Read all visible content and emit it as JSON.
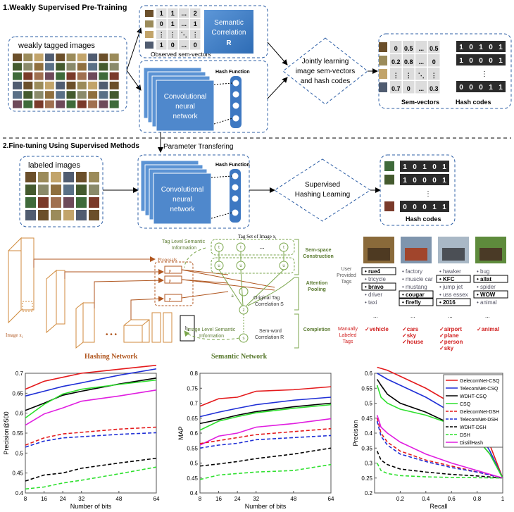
{
  "s1": {
    "title": "1.Weakly Supervised Pre-Training",
    "weak": "weakly tagged images",
    "obs": {
      "rows": [
        [
          "1",
          "1",
          "...",
          "2"
        ],
        [
          "0",
          "1",
          "...",
          "1"
        ],
        [
          "⋮",
          "⋮",
          "⋱",
          "⋮"
        ],
        [
          "1",
          "0",
          "...",
          "0"
        ]
      ],
      "label": "Observed sem-vectors"
    },
    "semcorr": {
      "l1": "Semantic",
      "l2": "Correlation",
      "l3": "R"
    },
    "cnn": {
      "l1": "Convolutional",
      "l2": "neural",
      "l3": "network"
    },
    "hashfn": "Hash Function",
    "joint": {
      "l1": "Jointly learning",
      "l2": "image sem-vectors",
      "l3": "and hash codes"
    },
    "semvec": {
      "rows": [
        [
          "0",
          "0.5",
          "...",
          "0.5"
        ],
        [
          "0.2",
          "0.8",
          "...",
          "0"
        ],
        [
          "⋮",
          "⋮",
          "⋱",
          "⋮"
        ],
        [
          "0.7",
          "0",
          "...",
          "0.3"
        ]
      ],
      "label": "Sem-vectors"
    },
    "hash": {
      "rows": [
        [
          "1",
          "0",
          "1",
          "0",
          "1"
        ],
        [
          "1",
          "0",
          "0",
          "0",
          "1"
        ],
        [
          "⋮"
        ],
        [
          "0",
          "0",
          "0",
          "1",
          "1"
        ]
      ],
      "label": "Hash codes"
    }
  },
  "s2": {
    "title": "2.Fine-tuning Using Supervised Methods",
    "param": "Parameter Transfering",
    "labeled": "labeled images",
    "cnn": {
      "l1": "Convolutional",
      "l2": "neural",
      "l3": "network"
    },
    "hashfn": "Hash Function",
    "sup": {
      "l1": "Supervised",
      "l2": "Hashing Learning"
    },
    "hash": {
      "rows": [
        [
          "1",
          "0",
          "1",
          "0",
          "1"
        ],
        [
          "1",
          "0",
          "0",
          "0",
          "1"
        ],
        [
          "⋮"
        ],
        [
          "0",
          "0",
          "0",
          "1",
          "1"
        ]
      ],
      "label": "Hash codes"
    }
  },
  "mid": {
    "image": "Image x",
    "image_sub": "i",
    "proposals": "Proposals",
    "p1": "p",
    "p2": "p",
    "pN": "p",
    "h": "h",
    "h_sub": "i",
    "hashnet": "Hashing Network",
    "dots": "• • •",
    "tagset": "Tag Set of Image x",
    "tagset_sub": "i",
    "tli": {
      "l1": "Tag Level Semantic",
      "l2": "Information"
    },
    "ili": {
      "l1": "Image Level Semantic",
      "l2": "Information"
    },
    "sem_space": {
      "l1": "Sem-space",
      "l2": "Construction"
    },
    "attn": {
      "l1": "Attention",
      "l2": "Pooling"
    },
    "completion": "Completion",
    "otc": {
      "l1": "Original Tag",
      "l2": "Correlation S"
    },
    "swc": {
      "l1": "Sem-word",
      "l2": "Correlation R"
    },
    "semnet": "Semantic Network",
    "t": "t",
    "u": "u",
    "a": "a",
    "z": "z",
    "s": "s"
  },
  "tags": {
    "user_label": [
      "User",
      "Provided",
      "Tags"
    ],
    "manual_label": [
      "Manually",
      "Labeled",
      "Tags"
    ],
    "photos": [
      {
        "color": "#8a6a3a",
        "color2": "#4e3a22",
        "user": [
          {
            "t": "rue4",
            "b": true
          },
          {
            "t": "tricycle",
            "b": false
          },
          {
            "t": "bravo",
            "b": true
          },
          {
            "t": "driver",
            "b": false
          },
          {
            "t": "taxi",
            "b": false
          }
        ],
        "manual": [
          "vehicle"
        ]
      },
      {
        "color": "#7f95ad",
        "color2": "#a1452c",
        "user": [
          {
            "t": "factory",
            "b": false
          },
          {
            "t": "muscle car",
            "b": false
          },
          {
            "t": "mustang",
            "b": false
          },
          {
            "t": "cougar",
            "b": true
          },
          {
            "t": "firefly",
            "b": true
          }
        ],
        "manual": [
          "cars",
          "sky",
          "house"
        ]
      },
      {
        "color": "#a9b8c6",
        "color2": "#4b4f55",
        "user": [
          {
            "t": "hawker",
            "b": false
          },
          {
            "t": "KFC",
            "b": true
          },
          {
            "t": "jump jet",
            "b": false
          },
          {
            "t": "uss essex",
            "b": false
          },
          {
            "t": "2016",
            "b": true
          }
        ],
        "manual": [
          "airport",
          "plane",
          "person",
          "sky"
        ]
      },
      {
        "color": "#5e8b3c",
        "color2": "#4a3a26",
        "user": [
          {
            "t": "bug",
            "b": false
          },
          {
            "t": "allat",
            "b": true
          },
          {
            "t": "spider",
            "b": false
          },
          {
            "t": "WOW",
            "b": true
          },
          {
            "t": "animal",
            "b": false
          }
        ],
        "manual": [
          "animal"
        ]
      }
    ],
    "ellipsis": "..."
  },
  "chart_data": [
    {
      "type": "line",
      "xlabel": "Number of bits",
      "ylabel": "Precision@500",
      "x": [
        8,
        16,
        24,
        32,
        48,
        64
      ],
      "xlim": [
        8,
        64
      ],
      "ylim": [
        0.4,
        0.7
      ],
      "yticks": [
        "0.4",
        "0.45",
        "0.5",
        "0.55",
        "0.6",
        "0.65",
        "0.7"
      ],
      "xticks": [
        "8",
        "16",
        "24",
        "32",
        "48",
        "64"
      ],
      "series": [
        {
          "values": [
            0.66,
            0.68,
            0.69,
            0.7,
            0.71,
            0.72
          ],
          "color": "#e41a1c",
          "dash": false
        },
        {
          "values": [
            0.643,
            0.655,
            0.667,
            0.676,
            0.695,
            0.711
          ],
          "color": "#1f2fd6",
          "dash": false
        },
        {
          "values": [
            0.607,
            0.625,
            0.645,
            0.655,
            0.673,
            0.688
          ],
          "color": "#000000",
          "dash": false
        },
        {
          "values": [
            0.588,
            0.622,
            0.648,
            0.66,
            0.672,
            0.683
          ],
          "color": "#2ee02e",
          "dash": false
        },
        {
          "values": [
            0.57,
            0.598,
            0.613,
            0.63,
            0.643,
            0.658
          ],
          "color": "#e01ee0",
          "dash": false
        },
        {
          "values": [
            0.52,
            0.538,
            0.548,
            0.552,
            0.56,
            0.565
          ],
          "color": "#e41a1c",
          "dash": true
        },
        {
          "values": [
            0.515,
            0.53,
            0.538,
            0.541,
            0.547,
            0.551
          ],
          "color": "#1f2fd6",
          "dash": true
        },
        {
          "values": [
            0.43,
            0.445,
            0.45,
            0.462,
            0.475,
            0.487
          ],
          "color": "#000000",
          "dash": true
        },
        {
          "values": [
            0.41,
            0.415,
            0.425,
            0.432,
            0.448,
            0.465
          ],
          "color": "#2ee02e",
          "dash": true
        }
      ]
    },
    {
      "type": "line",
      "xlabel": "Number of bits",
      "ylabel": "MAP",
      "x": [
        8,
        16,
        24,
        32,
        48,
        64
      ],
      "xlim": [
        8,
        64
      ],
      "ylim": [
        0.4,
        0.8
      ],
      "yticks": [
        "0.4",
        "0.45",
        "0.5",
        "0.55",
        "0.6",
        "0.65",
        "0.7",
        "0.75",
        "0.8"
      ],
      "xticks": [
        "8",
        "16",
        "24",
        "32",
        "48",
        "64"
      ],
      "series": [
        {
          "values": [
            0.69,
            0.715,
            0.72,
            0.74,
            0.745,
            0.755
          ],
          "color": "#e41a1c",
          "dash": false
        },
        {
          "values": [
            0.655,
            0.67,
            0.683,
            0.695,
            0.71,
            0.72
          ],
          "color": "#1f2fd6",
          "dash": false
        },
        {
          "values": [
            0.632,
            0.645,
            0.66,
            0.672,
            0.688,
            0.7
          ],
          "color": "#000000",
          "dash": false
        },
        {
          "values": [
            0.61,
            0.64,
            0.655,
            0.668,
            0.683,
            0.695
          ],
          "color": "#2ee02e",
          "dash": false
        },
        {
          "values": [
            0.56,
            0.59,
            0.6,
            0.62,
            0.632,
            0.648
          ],
          "color": "#e01ee0",
          "dash": false
        },
        {
          "values": [
            0.565,
            0.575,
            0.585,
            0.595,
            0.605,
            0.615
          ],
          "color": "#e41a1c",
          "dash": true
        },
        {
          "values": [
            0.55,
            0.56,
            0.566,
            0.578,
            0.585,
            0.592
          ],
          "color": "#1f2fd6",
          "dash": true
        },
        {
          "values": [
            0.49,
            0.497,
            0.505,
            0.515,
            0.53,
            0.55
          ],
          "color": "#000000",
          "dash": true
        },
        {
          "values": [
            0.445,
            0.46,
            0.465,
            0.47,
            0.475,
            0.495
          ],
          "color": "#2ee02e",
          "dash": true
        }
      ]
    },
    {
      "type": "line",
      "xlabel": "Recall",
      "ylabel": "Precision",
      "xlim": [
        0,
        1
      ],
      "ylim": [
        0.2,
        0.6
      ],
      "yticks": [
        "0.2",
        "0.25",
        "0.3",
        "0.35",
        "0.4",
        "0.45",
        "0.5",
        "0.55",
        "0.6"
      ],
      "xticks": [
        "0.2",
        "0.4",
        "0.6",
        "0.8",
        "1"
      ],
      "xtick_vals": [
        0.2,
        0.4,
        0.6,
        0.8,
        1
      ],
      "legend": [
        "GelecomNet-CSQ",
        "TelecomNet-CSQ",
        "WDHT-CSQ",
        "CSQ",
        "GelecomNet-DSH",
        "TelecomNet-DSH",
        "WDHT-DSH",
        "DSH",
        "DistillHash"
      ],
      "legend_position": "top-right",
      "series": [
        {
          "name": "GelecomNet-CSQ",
          "color": "#e41a1c",
          "dash": false,
          "points": [
            [
              0.02,
              0.62
            ],
            [
              0.1,
              0.61
            ],
            [
              0.2,
              0.59
            ],
            [
              0.4,
              0.55
            ],
            [
              0.6,
              0.5
            ],
            [
              0.8,
              0.43
            ],
            [
              0.9,
              0.36
            ],
            [
              1,
              0.25
            ]
          ]
        },
        {
          "name": "TelecomNet-CSQ",
          "color": "#1f2fd6",
          "dash": false,
          "points": [
            [
              0.02,
              0.6
            ],
            [
              0.1,
              0.58
            ],
            [
              0.2,
              0.56
            ],
            [
              0.4,
              0.52
            ],
            [
              0.6,
              0.47
            ],
            [
              0.8,
              0.41
            ],
            [
              0.9,
              0.34
            ],
            [
              1,
              0.25
            ]
          ]
        },
        {
          "name": "WDHT-CSQ",
          "color": "#000000",
          "dash": false,
          "points": [
            [
              0.02,
              0.58
            ],
            [
              0.05,
              0.56
            ],
            [
              0.1,
              0.53
            ],
            [
              0.2,
              0.5
            ],
            [
              0.4,
              0.47
            ],
            [
              0.6,
              0.43
            ],
            [
              0.8,
              0.38
            ],
            [
              0.9,
              0.33
            ],
            [
              1,
              0.25
            ]
          ]
        },
        {
          "name": "CSQ",
          "color": "#2ee02e",
          "dash": false,
          "points": [
            [
              0.02,
              0.56
            ],
            [
              0.05,
              0.52
            ],
            [
              0.1,
              0.5
            ],
            [
              0.2,
              0.48
            ],
            [
              0.4,
              0.46
            ],
            [
              0.6,
              0.43
            ],
            [
              0.8,
              0.38
            ],
            [
              0.9,
              0.33
            ],
            [
              1,
              0.25
            ]
          ]
        },
        {
          "name": "GelecomNet-DSH",
          "color": "#e41a1c",
          "dash": true,
          "points": [
            [
              0.02,
              0.45
            ],
            [
              0.05,
              0.4
            ],
            [
              0.1,
              0.37
            ],
            [
              0.2,
              0.34
            ],
            [
              0.4,
              0.31
            ],
            [
              0.6,
              0.29
            ],
            [
              0.8,
              0.27
            ],
            [
              1,
              0.25
            ]
          ]
        },
        {
          "name": "TelecomNet-DSH",
          "color": "#1f2fd6",
          "dash": true,
          "points": [
            [
              0.02,
              0.44
            ],
            [
              0.05,
              0.39
            ],
            [
              0.1,
              0.36
            ],
            [
              0.2,
              0.33
            ],
            [
              0.4,
              0.305
            ],
            [
              0.6,
              0.285
            ],
            [
              0.8,
              0.27
            ],
            [
              1,
              0.25
            ]
          ]
        },
        {
          "name": "WDHT-DSH",
          "color": "#000000",
          "dash": true,
          "points": [
            [
              0.02,
              0.34
            ],
            [
              0.05,
              0.31
            ],
            [
              0.1,
              0.295
            ],
            [
              0.2,
              0.28
            ],
            [
              0.4,
              0.27
            ],
            [
              0.6,
              0.262
            ],
            [
              0.8,
              0.257
            ],
            [
              1,
              0.25
            ]
          ]
        },
        {
          "name": "DSH",
          "color": "#2ee02e",
          "dash": true,
          "points": [
            [
              0.02,
              0.3
            ],
            [
              0.05,
              0.275
            ],
            [
              0.1,
              0.265
            ],
            [
              0.2,
              0.258
            ],
            [
              0.4,
              0.254
            ],
            [
              0.6,
              0.252
            ],
            [
              0.8,
              0.251
            ],
            [
              1,
              0.25
            ]
          ]
        },
        {
          "name": "DistillHash",
          "color": "#e01ee0",
          "dash": false,
          "points": [
            [
              0.02,
              0.46
            ],
            [
              0.05,
              0.42
            ],
            [
              0.1,
              0.4
            ],
            [
              0.2,
              0.37
            ],
            [
              0.4,
              0.33
            ],
            [
              0.6,
              0.3
            ],
            [
              0.8,
              0.275
            ],
            [
              1,
              0.25
            ]
          ]
        }
      ]
    }
  ]
}
